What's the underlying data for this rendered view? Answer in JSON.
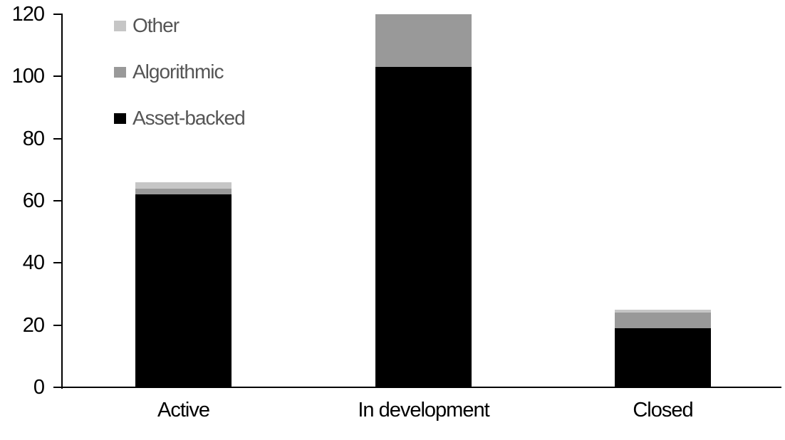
{
  "chart_data": {
    "type": "bar",
    "stacked": true,
    "title": "",
    "xlabel": "",
    "ylabel": "",
    "categories": [
      "Active",
      "In development",
      "Closed"
    ],
    "series": [
      {
        "name": "Asset-backed",
        "color": "#000000",
        "values": [
          62,
          103,
          19
        ]
      },
      {
        "name": "Algorithmic",
        "color": "#999999",
        "values": [
          2,
          17,
          5
        ]
      },
      {
        "name": "Other",
        "color": "#C6C6C6",
        "values": [
          2,
          0,
          1
        ]
      }
    ],
    "totals": [
      66,
      120,
      25
    ],
    "ylim": [
      0,
      120
    ],
    "yticks": [
      0,
      20,
      40,
      60,
      80,
      100,
      120
    ],
    "grid": false,
    "legend": {
      "position": "top-left",
      "order": [
        "Other",
        "Algorithmic",
        "Asset-backed"
      ],
      "text_color": "#555555"
    },
    "axis_color": "#000000",
    "background_color": "#FFFFFF"
  }
}
